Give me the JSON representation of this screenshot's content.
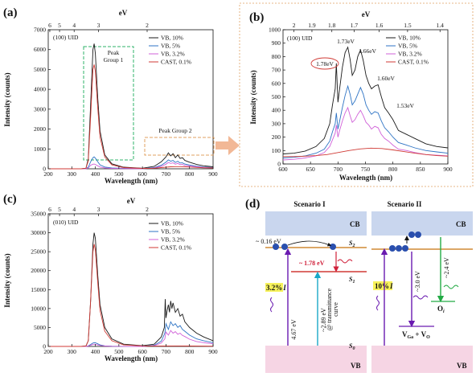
{
  "colors": {
    "vb10": "#1a1a1a",
    "vb5": "#2d73c4",
    "vb32": "#d060d8",
    "cast": "#d03a35",
    "green_box": "#2fb36a",
    "orange_box": "#e0a060",
    "arrow": "#f2b896",
    "band_top": "#c9d6ee",
    "band_bot": "#f6d5e4",
    "highlight": "#f7f25b"
  },
  "panel_labels": {
    "a": "(a)",
    "b": "(b)",
    "c": "(c)",
    "d": "(d)"
  },
  "charts_text": {
    "a": {
      "sample": "(100) UID",
      "top_axis": "eV",
      "xlabel": "Wavelength (nm)",
      "ylabel": "Intensity (counts)",
      "peak_group_1": "Peak\nGroup 1",
      "peak_group_1_l1": "Peak",
      "peak_group_1_l2": "Group 1",
      "peak_group_2": "Peak Group 2"
    },
    "b": {
      "sample": "(100) UID",
      "top_axis": "eV",
      "xlabel": "Wavelength (nm)",
      "ylabel": "Intensity (counts)",
      "peaks": [
        "1.78eV",
        "1.73eV",
        "1.66eV",
        "1.60eV",
        "1.53eV"
      ]
    },
    "c": {
      "sample": "(010) UID",
      "top_axis": "eV",
      "xlabel": "Wavelength (nm)",
      "ylabel": "Intensity (counts)"
    }
  },
  "chart_data": [
    {
      "panel": "a",
      "type": "line",
      "xlim": [
        200,
        900
      ],
      "ylim": [
        0,
        7000
      ],
      "xticks": [
        200,
        300,
        400,
        500,
        600,
        700,
        800,
        900
      ],
      "yticks": [
        0,
        1000,
        2000,
        3000,
        4000,
        5000,
        6000,
        7000
      ],
      "top_ticks": [
        6,
        5,
        4,
        3,
        2
      ],
      "legend_position": "top-right",
      "series": [
        {
          "name": "VB, 10%",
          "key": "vb10",
          "x": [
            200,
            340,
            360,
            370,
            380,
            390,
            395,
            400,
            410,
            420,
            440,
            470,
            520,
            600,
            650,
            680,
            700,
            710,
            720,
            730,
            740,
            750,
            760,
            770,
            780,
            800,
            830,
            860,
            900
          ],
          "y": [
            0,
            0,
            30,
            500,
            3200,
            6000,
            6300,
            5800,
            3600,
            1900,
            700,
            250,
            80,
            30,
            120,
            350,
            600,
            800,
            650,
            760,
            560,
            700,
            520,
            560,
            420,
            330,
            220,
            150,
            100
          ]
        },
        {
          "name": "VB, 5%",
          "key": "vb5",
          "x": [
            200,
            340,
            360,
            370,
            380,
            390,
            395,
            400,
            410,
            420,
            440,
            470,
            520,
            600,
            650,
            680,
            700,
            710,
            720,
            730,
            740,
            750,
            760,
            770,
            780,
            800,
            830,
            860,
            900
          ],
          "y": [
            0,
            0,
            10,
            80,
            350,
            560,
            600,
            540,
            360,
            200,
            90,
            40,
            20,
            10,
            60,
            180,
            330,
            450,
            380,
            420,
            320,
            380,
            290,
            300,
            240,
            190,
            130,
            90,
            60
          ]
        },
        {
          "name": "VB, 3.2%",
          "key": "vb32",
          "x": [
            200,
            340,
            360,
            370,
            380,
            390,
            395,
            400,
            410,
            420,
            440,
            470,
            520,
            600,
            650,
            680,
            700,
            710,
            720,
            730,
            740,
            750,
            760,
            770,
            780,
            800,
            830,
            860,
            900
          ],
          "y": [
            0,
            0,
            5,
            40,
            180,
            230,
            240,
            220,
            150,
            90,
            40,
            20,
            10,
            5,
            40,
            120,
            230,
            320,
            270,
            300,
            230,
            270,
            210,
            220,
            170,
            140,
            100,
            70,
            50
          ]
        },
        {
          "name": "CAST, 0.1%",
          "key": "cast",
          "x": [
            200,
            340,
            360,
            370,
            380,
            390,
            395,
            400,
            410,
            420,
            440,
            470,
            520,
            600,
            650,
            680,
            700,
            720,
            740,
            760,
            780,
            800,
            830,
            860,
            900
          ],
          "y": [
            0,
            0,
            30,
            400,
            2600,
            5000,
            5250,
            4900,
            3100,
            1600,
            600,
            200,
            60,
            20,
            30,
            60,
            80,
            100,
            110,
            110,
            100,
            90,
            70,
            50,
            40
          ]
        }
      ]
    },
    {
      "panel": "b",
      "type": "line",
      "xlim": [
        600,
        900
      ],
      "ylim": [
        0,
        1000
      ],
      "xticks": [
        600,
        650,
        700,
        750,
        800,
        850,
        900
      ],
      "yticks": [
        0,
        100,
        200,
        300,
        400,
        500,
        600,
        700,
        800,
        900,
        1000
      ],
      "top_ticks": [
        2,
        1.9,
        1.8,
        1.7,
        1.6,
        1.5,
        1.4
      ],
      "legend_position": "top-right",
      "series": [
        {
          "name": "VB, 10%",
          "key": "vb10",
          "x": [
            600,
            620,
            640,
            660,
            675,
            685,
            690,
            695,
            697,
            700,
            703,
            708,
            713,
            718,
            722,
            726,
            731,
            736,
            741,
            746,
            751,
            756,
            761,
            767,
            773,
            779,
            785,
            792,
            800,
            810,
            825,
            840,
            860,
            880,
            900
          ],
          "y": [
            75,
            80,
            95,
            130,
            190,
            300,
            440,
            560,
            750,
            460,
            560,
            720,
            830,
            870,
            780,
            660,
            700,
            800,
            850,
            770,
            660,
            600,
            560,
            580,
            590,
            500,
            420,
            380,
            330,
            250,
            220,
            190,
            150,
            130,
            120
          ]
        },
        {
          "name": "VB, 5%",
          "key": "vb5",
          "x": [
            600,
            620,
            640,
            660,
            675,
            685,
            690,
            695,
            697,
            700,
            703,
            708,
            713,
            718,
            722,
            726,
            731,
            736,
            741,
            746,
            751,
            756,
            761,
            767,
            773,
            779,
            785,
            792,
            800,
            810,
            825,
            840,
            860,
            880,
            900
          ],
          "y": [
            45,
            50,
            60,
            80,
            110,
            170,
            240,
            300,
            380,
            260,
            320,
            420,
            510,
            580,
            520,
            440,
            470,
            520,
            570,
            520,
            440,
            400,
            370,
            390,
            380,
            320,
            270,
            240,
            200,
            160,
            140,
            120,
            100,
            90,
            80
          ]
        },
        {
          "name": "VB, 3.2%",
          "key": "vb32",
          "x": [
            600,
            620,
            640,
            660,
            675,
            685,
            690,
            695,
            697,
            700,
            703,
            708,
            713,
            718,
            722,
            726,
            731,
            736,
            741,
            746,
            751,
            756,
            761,
            767,
            773,
            779,
            785,
            792,
            800,
            810,
            825,
            840,
            860,
            880,
            900
          ],
          "y": [
            30,
            35,
            45,
            60,
            85,
            130,
            180,
            230,
            290,
            200,
            250,
            320,
            380,
            420,
            360,
            310,
            330,
            370,
            400,
            360,
            310,
            290,
            260,
            280,
            270,
            220,
            190,
            170,
            140,
            110,
            100,
            85,
            70,
            65,
            60
          ]
        },
        {
          "name": "CAST, 0.1%",
          "key": "cast",
          "x": [
            600,
            620,
            640,
            660,
            680,
            700,
            720,
            740,
            760,
            780,
            800,
            820,
            840,
            860,
            880,
            900
          ],
          "y": [
            55,
            55,
            58,
            62,
            70,
            85,
            100,
            112,
            118,
            115,
            105,
            92,
            80,
            70,
            62,
            58
          ]
        }
      ]
    },
    {
      "panel": "c",
      "type": "line",
      "xlim": [
        200,
        900
      ],
      "ylim": [
        0,
        35000
      ],
      "xticks": [
        200,
        300,
        400,
        500,
        600,
        700,
        800,
        900
      ],
      "yticks": [
        0,
        5000,
        10000,
        15000,
        20000,
        25000,
        30000,
        35000
      ],
      "top_ticks": [
        6,
        5,
        4,
        3,
        2
      ],
      "legend_position": "top-right",
      "series": [
        {
          "name": "VB, 10%",
          "key": "vb10",
          "x": [
            200,
            340,
            360,
            370,
            380,
            390,
            395,
            400,
            410,
            420,
            440,
            470,
            520,
            600,
            650,
            680,
            693,
            697,
            700,
            705,
            710,
            715,
            720,
            725,
            730,
            740,
            750,
            760,
            770,
            780,
            800,
            830,
            860,
            900
          ],
          "y": [
            0,
            0,
            100,
            1500,
            12000,
            27000,
            30000,
            28500,
            19000,
            11000,
            5000,
            2000,
            600,
            200,
            600,
            2500,
            5000,
            12500,
            7500,
            9500,
            11000,
            9000,
            12000,
            10000,
            11500,
            9000,
            10000,
            8000,
            8500,
            6500,
            5000,
            3500,
            2500,
            1500
          ]
        },
        {
          "name": "VB, 5%",
          "key": "vb5",
          "x": [
            200,
            340,
            360,
            370,
            380,
            390,
            395,
            400,
            410,
            420,
            440,
            470,
            520,
            600,
            650,
            680,
            695,
            700,
            710,
            720,
            730,
            740,
            750,
            760,
            770,
            780,
            800,
            830,
            860,
            900
          ],
          "y": [
            0,
            0,
            20,
            150,
            500,
            900,
            1000,
            950,
            700,
            400,
            150,
            60,
            20,
            10,
            300,
            1400,
            3500,
            6000,
            4500,
            6500,
            5500,
            6000,
            5000,
            5500,
            4500,
            4000,
            3000,
            2000,
            1500,
            1000
          ]
        },
        {
          "name": "VB, 3.2%",
          "key": "vb32",
          "x": [
            200,
            340,
            360,
            370,
            380,
            390,
            395,
            400,
            410,
            420,
            440,
            470,
            520,
            600,
            650,
            680,
            695,
            700,
            710,
            720,
            730,
            740,
            750,
            760,
            770,
            780,
            800,
            830,
            860,
            900
          ],
          "y": [
            0,
            0,
            10,
            100,
            300,
            550,
            600,
            560,
            400,
            250,
            100,
            40,
            15,
            5,
            200,
            900,
            2000,
            3800,
            3000,
            4200,
            3500,
            3900,
            3200,
            3500,
            2900,
            2600,
            1900,
            1300,
            1000,
            700
          ]
        },
        {
          "name": "CAST, 0.1%",
          "key": "cast",
          "x": [
            200,
            340,
            360,
            370,
            380,
            390,
            395,
            400,
            410,
            420,
            440,
            470,
            520,
            600,
            650,
            700,
            750,
            800,
            850,
            900
          ],
          "y": [
            0,
            0,
            100,
            1500,
            12000,
            25000,
            27000,
            25500,
            17000,
            9500,
            4000,
            1500,
            400,
            150,
            80,
            100,
            120,
            110,
            90,
            70
          ]
        }
      ]
    }
  ],
  "diagram": {
    "scenario1": "Scenario I",
    "scenario2": "Scenario II",
    "cb": "CB",
    "vb": "VB",
    "s2": "S",
    "s2_sub": "2",
    "s1": "S",
    "s1_sub": "1",
    "s0": "S",
    "s0_sub": "0",
    "e016": "~ 0.16 eV",
    "e178": "~ 1.78 eV",
    "pct32": "3.2%",
    "pct32_i": "I",
    "pct10": "10%",
    "pct10_i": "I",
    "e467": "4.67 eV",
    "e289": "~2.89 eV",
    "trans": "@ transmittance",
    "curve": "curve",
    "e30": "~3.0 eV",
    "e24": "~2.4 eV",
    "oi": "O",
    "oi_sub": "i",
    "vga": "V",
    "vga_sub": "Ga",
    "vga_rest": " + V",
    "vga_sub2": "O"
  }
}
